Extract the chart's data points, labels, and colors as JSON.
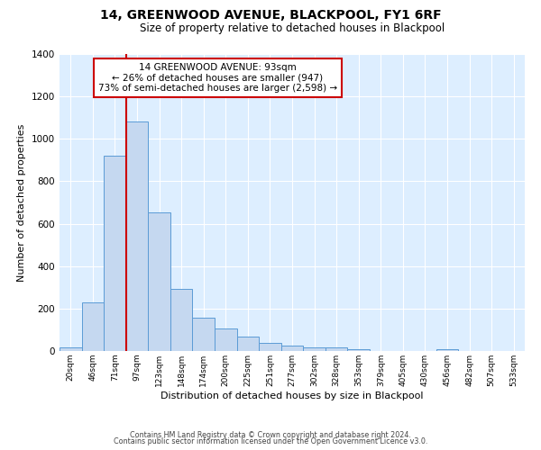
{
  "title": "14, GREENWOOD AVENUE, BLACKPOOL, FY1 6RF",
  "subtitle": "Size of property relative to detached houses in Blackpool",
  "xlabel": "Distribution of detached houses by size in Blackpool",
  "ylabel": "Number of detached properties",
  "bar_labels": [
    "20sqm",
    "46sqm",
    "71sqm",
    "97sqm",
    "123sqm",
    "148sqm",
    "174sqm",
    "200sqm",
    "225sqm",
    "251sqm",
    "277sqm",
    "302sqm",
    "328sqm",
    "353sqm",
    "379sqm",
    "405sqm",
    "430sqm",
    "456sqm",
    "482sqm",
    "507sqm",
    "533sqm"
  ],
  "bar_heights": [
    15,
    230,
    920,
    1080,
    655,
    293,
    158,
    107,
    68,
    37,
    25,
    18,
    15,
    10,
    0,
    0,
    0,
    10,
    0,
    0,
    0
  ],
  "bar_color": "#c5d8f0",
  "bar_edge_color": "#5b9bd5",
  "ylim": [
    0,
    1400
  ],
  "yticks": [
    0,
    200,
    400,
    600,
    800,
    1000,
    1200,
    1400
  ],
  "property_line_label": "14 GREENWOOD AVENUE: 93sqm",
  "annotation_line1": "← 26% of detached houses are smaller (947)",
  "annotation_line2": "73% of semi-detached houses are larger (2,598) →",
  "vline_color": "#cc0000",
  "footnote1": "Contains HM Land Registry data © Crown copyright and database right 2024.",
  "footnote2": "Contains public sector information licensed under the Open Government Licence v3.0.",
  "plot_bg_color": "#ddeeff"
}
